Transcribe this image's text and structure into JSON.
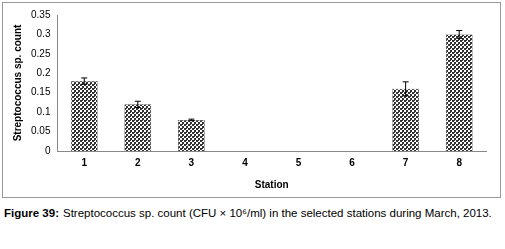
{
  "chart_data": {
    "type": "bar",
    "x_label": "Station",
    "y_label": "Streptococcus sp. count",
    "caption": {
      "label": "Figure 39:",
      "text": "Streptococcus sp. count (CFU × 10⁶/ml) in the selected stations during March, 2013."
    },
    "categories": [
      "1",
      "2",
      "3",
      "4",
      "5",
      "6",
      "7",
      "8"
    ],
    "values": [
      0.18,
      0.12,
      0.08,
      0,
      0,
      0,
      0.16,
      0.3
    ],
    "errors": [
      0.008,
      0.008,
      0.002,
      0,
      0,
      0,
      0.018,
      0.01
    ],
    "color": "#333333",
    "ylim": [
      0,
      0.35
    ],
    "yticks": [
      0,
      0.05,
      0.1,
      0.15,
      0.2,
      0.25,
      0.3,
      0.35
    ],
    "grid": false
  }
}
